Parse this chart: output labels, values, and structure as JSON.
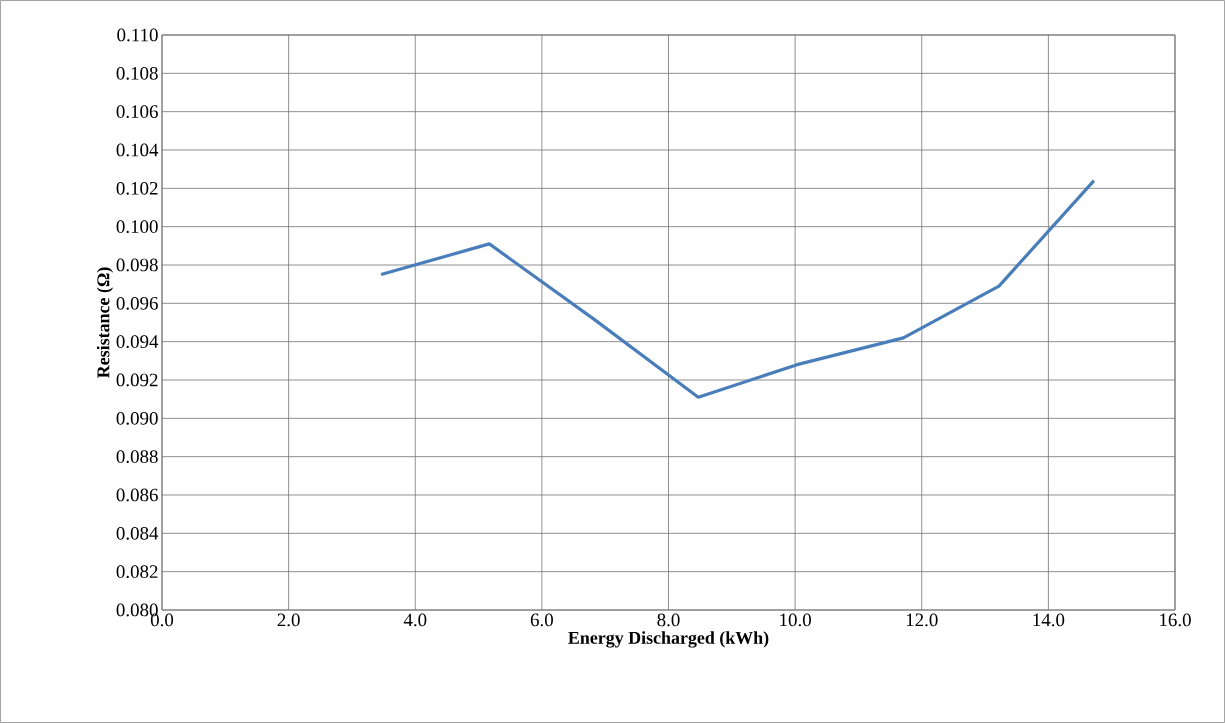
{
  "chart_data": {
    "type": "line",
    "xlabel": "Energy Discharged (kWh)",
    "ylabel": "Resistance (Ω)",
    "x": [
      3.46,
      5.17,
      6.81,
      8.47,
      10.03,
      11.71,
      13.22,
      14.72
    ],
    "series": [
      {
        "color": "#4a7ebb",
        "values": [
          0.0975,
          0.0991,
          0.0952,
          0.0911,
          0.0928,
          0.0942,
          0.0969,
          0.1024
        ]
      }
    ],
    "xlim": [
      0,
      16
    ],
    "ylim": [
      0.08,
      0.11
    ],
    "xticks": [
      {
        "value": 0,
        "label": "0.0"
      },
      {
        "value": 2,
        "label": "2.0"
      },
      {
        "value": 4,
        "label": "4.0"
      },
      {
        "value": 6,
        "label": "6.0"
      },
      {
        "value": 8,
        "label": "8.0"
      },
      {
        "value": 10,
        "label": "10.0"
      },
      {
        "value": 12,
        "label": "12.0"
      },
      {
        "value": 14,
        "label": "14.0"
      },
      {
        "value": 16,
        "label": "16.0"
      }
    ],
    "yticks": [
      {
        "value": 0.08,
        "label": "0.080"
      },
      {
        "value": 0.082,
        "label": "0.082"
      },
      {
        "value": 0.084,
        "label": "0.084"
      },
      {
        "value": 0.086,
        "label": "0.086"
      },
      {
        "value": 0.088,
        "label": "0.088"
      },
      {
        "value": 0.09,
        "label": "0.090"
      },
      {
        "value": 0.092,
        "label": "0.092"
      },
      {
        "value": 0.094,
        "label": "0.094"
      },
      {
        "value": 0.096,
        "label": "0.096"
      },
      {
        "value": 0.098,
        "label": "0.098"
      },
      {
        "value": 0.1,
        "label": "0.100"
      },
      {
        "value": 0.102,
        "label": "0.102"
      },
      {
        "value": 0.104,
        "label": "0.104"
      },
      {
        "value": 0.106,
        "label": "0.106"
      },
      {
        "value": 0.108,
        "label": "0.108"
      },
      {
        "value": 0.11,
        "label": "0.110"
      }
    ],
    "grid": true,
    "marker": "none",
    "line_style": "solid"
  }
}
